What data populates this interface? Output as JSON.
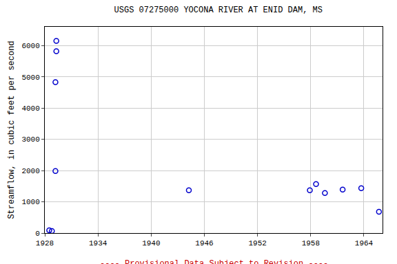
{
  "chart_data": {
    "type": "scatter",
    "title": "USGS 07275000 YOCONA RIVER AT ENID DAM, MS",
    "y_label": "Streamflow, in cubic feet per second",
    "annotations": [
      "---- Provisional Data Subject to Revision ----"
    ],
    "x": [
      1928.5,
      1928.8,
      1929.2,
      1929.2,
      1929.3,
      1929.3,
      1944.25,
      1957.9,
      1958.6,
      1959.6,
      1961.6,
      1963.7,
      1965.7
    ],
    "values": [
      88,
      66,
      1985,
      4830,
      5820,
      6150,
      1368,
      1368,
      1566,
      1279,
      1390,
      1434,
      684
    ],
    "color": "#0000cc",
    "marker": "circle-open",
    "xlim": [
      1928,
      1966.1
    ],
    "xticks": [
      1928,
      1934,
      1940,
      1946,
      1952,
      1958,
      1964
    ],
    "ylim": [
      0,
      6600
    ],
    "yticks": [
      0,
      1000,
      2000,
      3000,
      4000,
      5000,
      6000
    ],
    "grid": true
  }
}
